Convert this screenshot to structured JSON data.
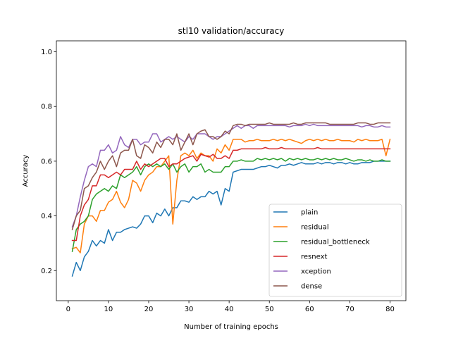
{
  "chart_data": {
    "type": "line",
    "title": "stl10 validation/accuracy",
    "xlabel": "Number of training epochs",
    "ylabel": "Accuracy",
    "xlim": [
      -2.95,
      83.95
    ],
    "ylim": [
      0.09,
      1.04
    ],
    "xticks": [
      0,
      10,
      20,
      30,
      40,
      50,
      60,
      70,
      80
    ],
    "yticks": [
      0.2,
      0.4,
      0.6,
      0.8,
      1.0
    ],
    "xtick_labels": [
      "0",
      "10",
      "20",
      "30",
      "40",
      "50",
      "60",
      "70",
      "80"
    ],
    "ytick_labels": [
      "0.2",
      "0.4",
      "0.6",
      "0.8",
      "1.0"
    ],
    "grid": false,
    "legend_position": "lower-right",
    "x": [
      1,
      2,
      3,
      4,
      5,
      6,
      7,
      8,
      9,
      10,
      11,
      12,
      13,
      14,
      15,
      16,
      17,
      18,
      19,
      20,
      21,
      22,
      23,
      24,
      25,
      26,
      27,
      28,
      29,
      30,
      31,
      32,
      33,
      34,
      35,
      36,
      37,
      38,
      39,
      40,
      41,
      42,
      43,
      44,
      45,
      46,
      47,
      48,
      49,
      50,
      51,
      52,
      53,
      54,
      55,
      56,
      57,
      58,
      59,
      60,
      61,
      62,
      63,
      64,
      65,
      66,
      67,
      68,
      69,
      70,
      71,
      72,
      73,
      74,
      75,
      76,
      77,
      78,
      79,
      80
    ],
    "series": [
      {
        "name": "plain",
        "color": "#1f77b4",
        "values": [
          0.18,
          0.23,
          0.2,
          0.25,
          0.27,
          0.31,
          0.29,
          0.31,
          0.3,
          0.35,
          0.31,
          0.34,
          0.34,
          0.35,
          0.355,
          0.36,
          0.355,
          0.37,
          0.4,
          0.4,
          0.375,
          0.41,
          0.4,
          0.425,
          0.4,
          0.43,
          0.43,
          0.455,
          0.455,
          0.45,
          0.47,
          0.46,
          0.47,
          0.47,
          0.49,
          0.48,
          0.49,
          0.44,
          0.5,
          0.49,
          0.56,
          0.565,
          0.57,
          0.57,
          0.57,
          0.57,
          0.575,
          0.58,
          0.58,
          0.585,
          0.58,
          0.575,
          0.585,
          0.585,
          0.59,
          0.585,
          0.59,
          0.595,
          0.59,
          0.59,
          0.59,
          0.595,
          0.59,
          0.595,
          0.595,
          0.59,
          0.595,
          0.595,
          0.59,
          0.595,
          0.59,
          0.59,
          0.595,
          0.595,
          0.595,
          0.6,
          0.6,
          0.6,
          0.6,
          0.6
        ]
      },
      {
        "name": "residual",
        "color": "#ff7f0e",
        "values": [
          0.28,
          0.285,
          0.265,
          0.37,
          0.4,
          0.4,
          0.38,
          0.42,
          0.42,
          0.45,
          0.46,
          0.49,
          0.45,
          0.43,
          0.46,
          0.53,
          0.52,
          0.49,
          0.53,
          0.55,
          0.56,
          0.58,
          0.58,
          0.6,
          0.62,
          0.37,
          0.53,
          0.62,
          0.63,
          0.62,
          0.64,
          0.61,
          0.63,
          0.62,
          0.62,
          0.6,
          0.645,
          0.63,
          0.66,
          0.64,
          0.68,
          0.68,
          0.68,
          0.67,
          0.675,
          0.675,
          0.68,
          0.675,
          0.675,
          0.675,
          0.68,
          0.675,
          0.68,
          0.675,
          0.68,
          0.675,
          0.67,
          0.665,
          0.675,
          0.68,
          0.675,
          0.68,
          0.675,
          0.68,
          0.675,
          0.675,
          0.68,
          0.675,
          0.675,
          0.675,
          0.67,
          0.68,
          0.675,
          0.68,
          0.675,
          0.675,
          0.675,
          0.68,
          0.62,
          0.68
        ]
      },
      {
        "name": "residual_bottleneck",
        "color": "#2ca02c",
        "values": [
          0.27,
          0.35,
          0.37,
          0.38,
          0.4,
          0.46,
          0.48,
          0.49,
          0.5,
          0.49,
          0.51,
          0.5,
          0.55,
          0.54,
          0.55,
          0.56,
          0.58,
          0.55,
          0.58,
          0.59,
          0.58,
          0.59,
          0.58,
          0.59,
          0.57,
          0.59,
          0.56,
          0.58,
          0.59,
          0.56,
          0.58,
          0.58,
          0.59,
          0.56,
          0.57,
          0.56,
          0.56,
          0.56,
          0.58,
          0.58,
          0.6,
          0.6,
          0.605,
          0.6,
          0.6,
          0.6,
          0.61,
          0.605,
          0.61,
          0.605,
          0.61,
          0.605,
          0.61,
          0.6,
          0.61,
          0.605,
          0.61,
          0.605,
          0.61,
          0.605,
          0.605,
          0.61,
          0.605,
          0.61,
          0.605,
          0.61,
          0.605,
          0.605,
          0.61,
          0.605,
          0.6,
          0.605,
          0.605,
          0.6,
          0.605,
          0.6,
          0.6,
          0.605,
          0.6,
          0.6
        ]
      },
      {
        "name": "resnext",
        "color": "#d62728",
        "values": [
          0.31,
          0.31,
          0.4,
          0.44,
          0.46,
          0.51,
          0.51,
          0.55,
          0.55,
          0.54,
          0.55,
          0.56,
          0.55,
          0.57,
          0.57,
          0.57,
          0.6,
          0.57,
          0.59,
          0.58,
          0.59,
          0.6,
          0.61,
          0.61,
          0.58,
          0.59,
          0.59,
          0.6,
          0.61,
          0.615,
          0.62,
          0.6,
          0.625,
          0.62,
          0.615,
          0.625,
          0.61,
          0.61,
          0.62,
          0.61,
          0.64,
          0.64,
          0.645,
          0.645,
          0.645,
          0.645,
          0.645,
          0.645,
          0.65,
          0.645,
          0.645,
          0.645,
          0.65,
          0.645,
          0.645,
          0.645,
          0.645,
          0.645,
          0.645,
          0.645,
          0.645,
          0.65,
          0.645,
          0.645,
          0.645,
          0.645,
          0.645,
          0.645,
          0.645,
          0.645,
          0.645,
          0.645,
          0.645,
          0.645,
          0.645,
          0.645,
          0.645,
          0.645,
          0.645,
          0.645
        ]
      },
      {
        "name": "xception",
        "color": "#9467bd",
        "values": [
          0.36,
          0.4,
          0.47,
          0.53,
          0.58,
          0.59,
          0.58,
          0.64,
          0.64,
          0.66,
          0.63,
          0.64,
          0.69,
          0.66,
          0.65,
          0.68,
          0.68,
          0.66,
          0.67,
          0.67,
          0.7,
          0.7,
          0.67,
          0.68,
          0.69,
          0.68,
          0.69,
          0.68,
          0.67,
          0.69,
          0.68,
          0.7,
          0.7,
          0.7,
          0.69,
          0.68,
          0.69,
          0.69,
          0.7,
          0.71,
          0.72,
          0.73,
          0.72,
          0.73,
          0.73,
          0.72,
          0.73,
          0.73,
          0.73,
          0.73,
          0.73,
          0.73,
          0.73,
          0.73,
          0.725,
          0.73,
          0.73,
          0.73,
          0.735,
          0.73,
          0.735,
          0.73,
          0.73,
          0.73,
          0.73,
          0.73,
          0.73,
          0.73,
          0.73,
          0.73,
          0.73,
          0.73,
          0.725,
          0.73,
          0.73,
          0.725,
          0.725,
          0.73,
          0.725,
          0.725
        ]
      },
      {
        "name": "dense",
        "color": "#8c564b",
        "values": [
          0.35,
          0.4,
          0.42,
          0.5,
          0.51,
          0.54,
          0.56,
          0.6,
          0.57,
          0.6,
          0.62,
          0.58,
          0.63,
          0.64,
          0.64,
          0.68,
          0.62,
          0.61,
          0.66,
          0.65,
          0.63,
          0.67,
          0.65,
          0.68,
          0.68,
          0.66,
          0.7,
          0.64,
          0.67,
          0.7,
          0.66,
          0.7,
          0.71,
          0.715,
          0.69,
          0.69,
          0.68,
          0.69,
          0.71,
          0.7,
          0.73,
          0.735,
          0.735,
          0.73,
          0.735,
          0.735,
          0.735,
          0.735,
          0.735,
          0.74,
          0.735,
          0.735,
          0.735,
          0.735,
          0.735,
          0.74,
          0.735,
          0.735,
          0.74,
          0.74,
          0.74,
          0.74,
          0.74,
          0.74,
          0.735,
          0.735,
          0.735,
          0.735,
          0.735,
          0.735,
          0.735,
          0.74,
          0.74,
          0.74,
          0.735,
          0.735,
          0.74,
          0.74,
          0.74,
          0.74
        ]
      }
    ]
  }
}
